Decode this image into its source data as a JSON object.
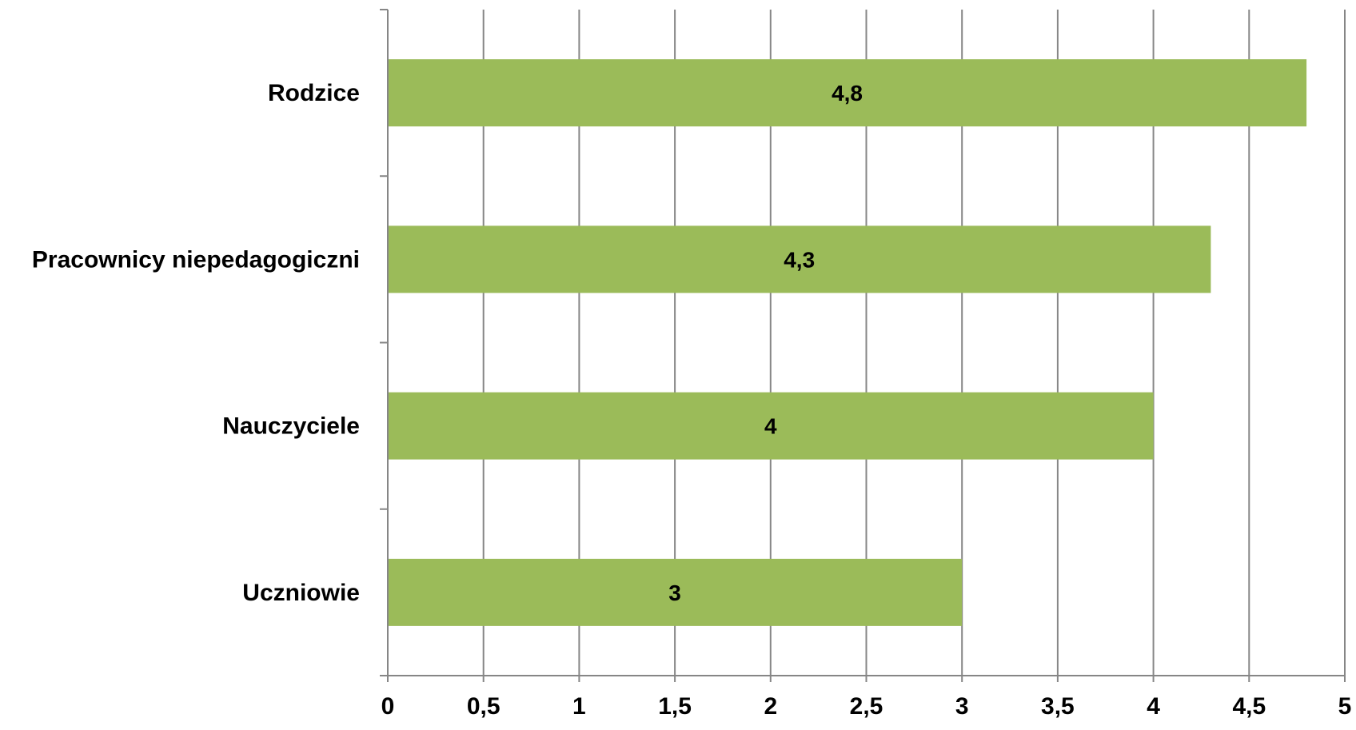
{
  "chart_data": {
    "type": "bar",
    "orientation": "horizontal",
    "categories": [
      "Rodzice",
      "Pracownicy niepedagogiczni",
      "Nauczyciele",
      "Uczniowie"
    ],
    "values": [
      4.8,
      4.3,
      4,
      3
    ],
    "value_labels": [
      "4,8",
      "4,3",
      "4",
      "3"
    ],
    "xlim": [
      0,
      5
    ],
    "x_ticks": [
      "0",
      "0,5",
      "1",
      "1,5",
      "2",
      "2,5",
      "3",
      "3,5",
      "4",
      "4,5",
      "5"
    ],
    "title": "",
    "xlabel": "",
    "ylabel": "",
    "grid": "vertical",
    "legend": "none",
    "colors": {
      "bar": "#9BBB59",
      "grid": "#868686",
      "text": "#000000"
    }
  }
}
